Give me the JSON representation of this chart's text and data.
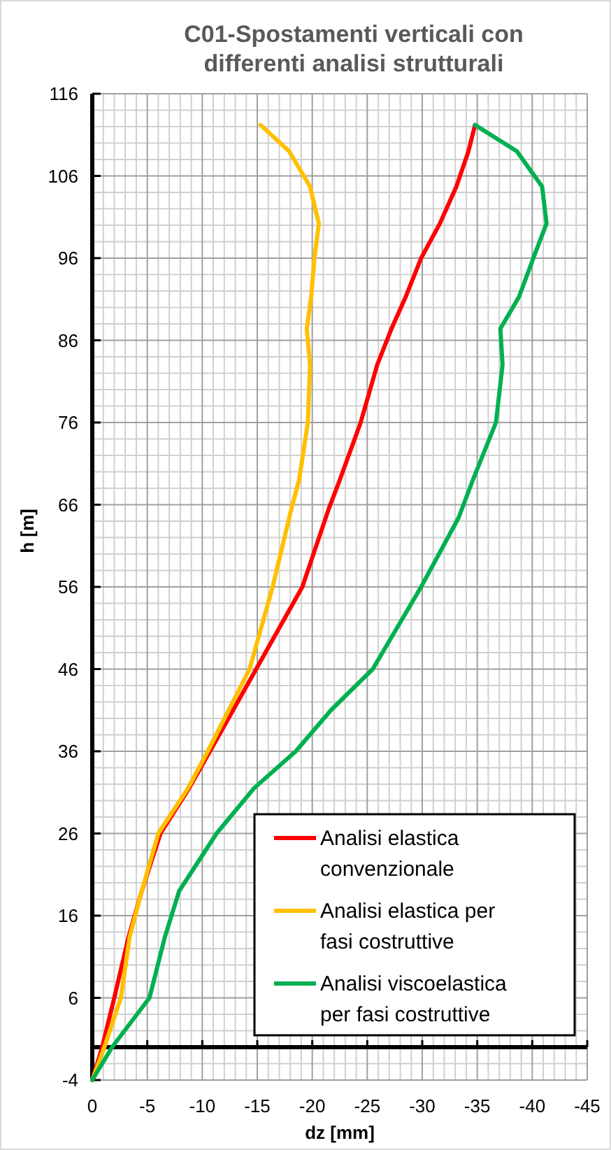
{
  "chart_data": {
    "type": "line",
    "title": "C01-Spostamenti verticali  con\ndifferenti analisi strutturali",
    "xlabel": "dz [mm]",
    "ylabel": "h [m]",
    "xlim": [
      0,
      -45
    ],
    "xticks": [
      0,
      -5,
      -10,
      -15,
      -20,
      -25,
      -30,
      -35,
      -40,
      -45
    ],
    "ylim": [
      -4,
      116
    ],
    "yticks": [
      -4,
      6,
      16,
      26,
      36,
      46,
      56,
      66,
      76,
      86,
      96,
      106,
      116
    ],
    "grid": true,
    "legend": "bottom right",
    "line_style": "solid",
    "marker": "none",
    "ref_lines": [
      {
        "axis": "y",
        "value": 0,
        "color": "#000000"
      }
    ],
    "series": [
      {
        "name": "Analisi elastica convenzionale",
        "color": "#ff0000",
        "x": [
          0,
          -0.9,
          -2.0,
          -3.3,
          -4.5,
          -6.2,
          -8.8,
          -10.7,
          -14.9,
          -19.1,
          -21.5,
          -22.5,
          -24.4,
          -25.9,
          -27.2,
          -28.5,
          -29.9,
          -31.6,
          -33.1,
          -34.2,
          -34.8
        ],
        "values": [
          -4,
          0,
          6,
          13.4,
          19,
          26,
          31.5,
          36,
          46,
          56,
          65.5,
          69,
          76,
          83,
          87.4,
          91.3,
          96,
          100.2,
          104.7,
          109,
          112.2
        ]
      },
      {
        "name": "Analisi elastica per fasi costruttive",
        "color": "#ffc000",
        "x": [
          0,
          -1.1,
          -2.6,
          -3.4,
          -4.5,
          -6.0,
          -8.7,
          -10.5,
          -14.3,
          -16.4,
          -18.1,
          -18.8,
          -19.6,
          -19.8,
          -19.5,
          -19.9,
          -20.2,
          -20.6,
          -19.8,
          -17.9,
          -15.3
        ],
        "values": [
          -4,
          0,
          6,
          13.4,
          19,
          26,
          31.5,
          36,
          46,
          56,
          65.5,
          69,
          76,
          83,
          87.4,
          91.3,
          96,
          100.2,
          104.7,
          109,
          112.2
        ]
      },
      {
        "name": "Analisi viscoelastica per fasi costruttive",
        "color": "#00b050",
        "x": [
          0,
          -1.8,
          -5.2,
          -6.6,
          -7.9,
          -11.3,
          -14.7,
          -18.5,
          -21.7,
          -25.5,
          -29.9,
          -33.3,
          -34.6,
          -36.7,
          -37.3,
          -37.1,
          -38.8,
          -40.1,
          -41.3,
          -40.9,
          -38.6,
          -34.8
        ],
        "values": [
          -4,
          0,
          6,
          13.4,
          19,
          26,
          31.5,
          36,
          41,
          46,
          56,
          64.4,
          69,
          76,
          83,
          87.4,
          91.3,
          96,
          100.2,
          104.7,
          109,
          112.2
        ]
      }
    ]
  }
}
